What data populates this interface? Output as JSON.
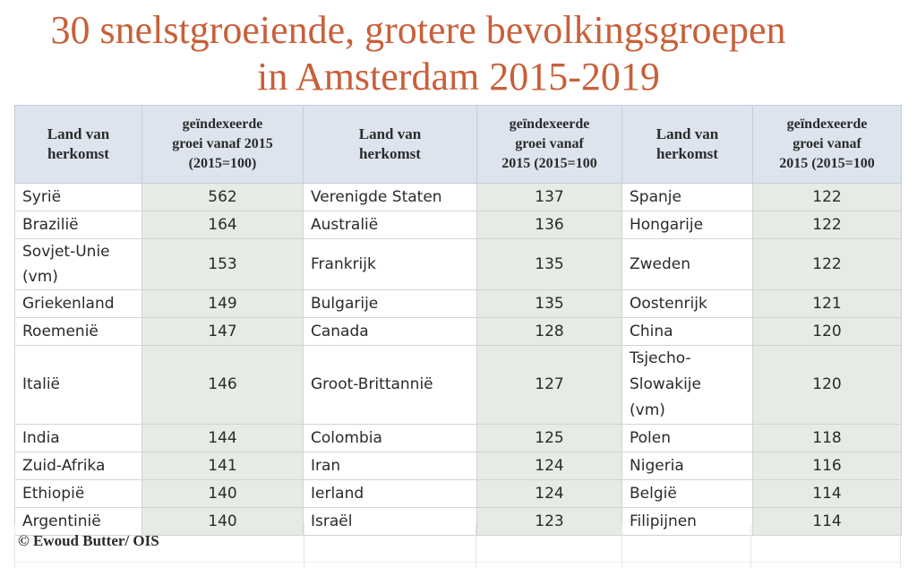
{
  "title_line1": "30 snelstgroeiende, grotere bevolkingsgroepen",
  "title_line2": "in Amsterdam 2015-2019",
  "headers": {
    "country": "Land van\nherkomst",
    "growth_col1": "geïndexeerde\ngroei vanaf 2015\n(2015=100)",
    "growth_col2": "geïndexeerde\ngroei vanaf\n2015 (2015=100",
    "growth_col3": "geïndexeerde\ngroei vanaf\n2015 (2015=100"
  },
  "credit": "© Ewoud Butter/ OIS",
  "chart_data": {
    "type": "table",
    "title": "30 snelstgroeiende, grotere bevolkingsgroepen in Amsterdam 2015-2019",
    "columns": [
      "Land van herkomst",
      "geïndexeerde groei vanaf 2015 (2015=100)"
    ],
    "rows": [
      [
        {
          "country": "Syrië",
          "value": 562
        },
        {
          "country": "Verenigde Staten",
          "value": 137
        },
        {
          "country": "Spanje",
          "value": 122
        }
      ],
      [
        {
          "country": "Brazilië",
          "value": 164
        },
        {
          "country": "Australië",
          "value": 136
        },
        {
          "country": "Hongarije",
          "value": 122
        }
      ],
      [
        {
          "country": "Sovjet-Unie\n(vm)",
          "value": 153
        },
        {
          "country": "Frankrijk",
          "value": 135
        },
        {
          "country": "Zweden",
          "value": 122
        }
      ],
      [
        {
          "country": "Griekenland",
          "value": 149
        },
        {
          "country": "Bulgarije",
          "value": 135
        },
        {
          "country": "Oostenrijk",
          "value": 121
        }
      ],
      [
        {
          "country": "Roemenië",
          "value": 147
        },
        {
          "country": "Canada",
          "value": 128
        },
        {
          "country": "China",
          "value": 120
        }
      ],
      [
        {
          "country": "Italië",
          "value": 146
        },
        {
          "country": "Groot-Brittannië",
          "value": 127
        },
        {
          "country": "Tsjecho-\nSlowakije\n(vm)",
          "value": 120
        }
      ],
      [
        {
          "country": "India",
          "value": 144
        },
        {
          "country": "Colombia",
          "value": 125
        },
        {
          "country": "Polen",
          "value": 118
        }
      ],
      [
        {
          "country": "Zuid-Afrika",
          "value": 141
        },
        {
          "country": "Iran",
          "value": 124
        },
        {
          "country": "Nigeria",
          "value": 116
        }
      ],
      [
        {
          "country": "Ethiopië",
          "value": 140
        },
        {
          "country": "Ierland",
          "value": 124
        },
        {
          "country": "België",
          "value": 114
        }
      ],
      [
        {
          "country": "Argentinië",
          "value": 140
        },
        {
          "country": "Israël",
          "value": 123
        },
        {
          "country": "Filipijnen",
          "value": 114
        }
      ]
    ]
  }
}
